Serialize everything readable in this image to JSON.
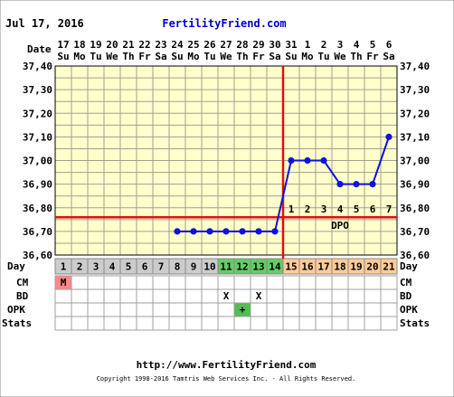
{
  "header": {
    "date": "Jul 17, 2016",
    "site": "FertilityFriend.com"
  },
  "footer": {
    "url": "http://www.FertilityFriend.com",
    "copyright": "Copyright 1998-2016 Tamtris Web Services Inc. - All Rights Reserved."
  },
  "colors": {
    "background": "#FFFFCC",
    "grid": "#A0A090",
    "coverline": "#DD1111",
    "temp_series": "#1111DD",
    "day_gray": "#CCCCCC",
    "day_green": "#66CC66",
    "day_orange": "#FFCC99",
    "menses": "#FF8888",
    "opk_positive": "#55BB55",
    "title_blue": "#0000CC"
  },
  "row_labels": {
    "date": "Date",
    "day": "Day",
    "cm": "CM",
    "bd": "BD",
    "opk": "OPK",
    "stats": "Stats",
    "dpo": "DPO"
  },
  "chart_data": {
    "type": "line",
    "title": "",
    "xlabel": "",
    "ylabel": "",
    "ylim": [
      36.6,
      37.4
    ],
    "yticks": [
      "36,60",
      "36,70",
      "36,80",
      "36,90",
      "37,00",
      "37,10",
      "37,20",
      "37,30",
      "37,40"
    ],
    "grid": true,
    "dates": [
      "17",
      "18",
      "19",
      "20",
      "21",
      "22",
      "23",
      "24",
      "25",
      "26",
      "27",
      "28",
      "29",
      "30",
      "31",
      "1",
      "2",
      "3",
      "4",
      "5",
      "6"
    ],
    "weekdays": [
      "Su",
      "Mo",
      "Tu",
      "We",
      "Th",
      "Fr",
      "Sa",
      "Su",
      "Mo",
      "Tu",
      "We",
      "Th",
      "Fr",
      "Sa",
      "Su",
      "Mo",
      "Tu",
      "We",
      "Th",
      "Fr",
      "Sa"
    ],
    "cycle_days": [
      "1",
      "2",
      "3",
      "4",
      "5",
      "6",
      "7",
      "8",
      "9",
      "10",
      "11",
      "12",
      "13",
      "14",
      "15",
      "16",
      "17",
      "18",
      "19",
      "20",
      "21"
    ],
    "day_states": [
      "menses",
      "gray",
      "gray",
      "gray",
      "gray",
      "gray",
      "gray",
      "gray",
      "gray",
      "gray",
      "green",
      "green",
      "green",
      "green",
      "orange",
      "orange",
      "orange",
      "orange",
      "orange",
      "orange",
      "orange"
    ],
    "series": [
      {
        "values": [
          null,
          null,
          null,
          null,
          null,
          null,
          null,
          36.7,
          36.7,
          36.7,
          36.7,
          36.7,
          36.7,
          36.7,
          37.0,
          37.0,
          37.0,
          36.9,
          36.9,
          36.9,
          37.1
        ]
      }
    ],
    "coverline": 36.76,
    "ovulation_day_index": 13,
    "dpo": [
      "1",
      "2",
      "3",
      "4",
      "5",
      "6",
      "7"
    ],
    "cm": [
      "M",
      "",
      "",
      "",
      "",
      "",
      "",
      "",
      "",
      "",
      "",
      "",
      "",
      "",
      "",
      "",
      "",
      "",
      "",
      "",
      ""
    ],
    "bd": [
      "",
      "",
      "",
      "",
      "",
      "",
      "",
      "",
      "",
      "",
      "X",
      "",
      "X",
      "",
      "",
      "",
      "",
      "",
      "",
      "",
      ""
    ],
    "opk": [
      "",
      "",
      "",
      "",
      "",
      "",
      "",
      "",
      "",
      "",
      "",
      "+",
      "",
      "",
      "",
      "",
      "",
      "",
      "",
      "",
      ""
    ]
  }
}
